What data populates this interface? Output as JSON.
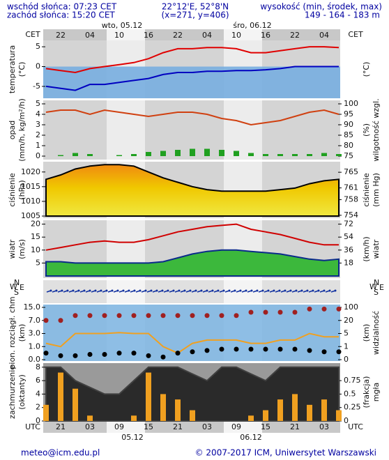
{
  "header": {
    "sunrise": "wschód słońca: 07:23 CET",
    "sunset": "zachód słońca: 15:20 CET",
    "coords": "22°12'E, 52°8'N",
    "grid": "(x=271, y=406)",
    "elev_title": "wysokość (min, środek, max)",
    "elev": "149 - 164 - 183 m"
  },
  "time_axis": {
    "top_zone": "CET",
    "bottom_zone": "UTC",
    "cet": [
      null,
      "22",
      null,
      "04",
      null,
      "10",
      null,
      "16",
      null,
      "22",
      null,
      "04",
      null,
      "10",
      null,
      "16",
      null,
      "22",
      null,
      "04",
      null
    ],
    "utc": [
      null,
      "21",
      null,
      "03",
      null,
      "09",
      null,
      "15",
      null,
      "21",
      null,
      "03",
      null,
      "09",
      null,
      "15",
      null,
      "21",
      null,
      "03",
      null
    ],
    "top_dates": [
      "wto, 05.12",
      "śro, 06.12"
    ],
    "bottom_dates": [
      "05.12",
      "06.12"
    ]
  },
  "compass": {
    "n": "N",
    "w": "W",
    "s": "S",
    "e": "E"
  },
  "footer": {
    "email": "meteo@icm.edu.pl",
    "copyright": "© 2007-2017 ICM, Uniwersytet Warszawski"
  },
  "chart_data": [
    {
      "type": "line",
      "ylabel": [
        "temperatura",
        "(°C)"
      ],
      "y2label": [
        "(°C)"
      ],
      "ylim": [
        -8,
        6.6
      ],
      "yticks": [
        5,
        0,
        -5
      ],
      "series": [
        {
          "type": "line",
          "color": "#e00000",
          "values": [
            -0.5,
            -1,
            -1.5,
            -0.5,
            0,
            0.5,
            1,
            2,
            3.5,
            4.5,
            4.5,
            4.8,
            4.8,
            4.5,
            3.5,
            3.5,
            4,
            4.5,
            5,
            5,
            4.8
          ]
        },
        {
          "type": "line",
          "color": "#0000c0",
          "values": [
            -5,
            -5.5,
            -6,
            -4.5,
            -4.5,
            -4,
            -3.5,
            -3,
            -2,
            -1.5,
            -1.5,
            -1.2,
            -1.2,
            -1,
            -1,
            -0.8,
            -0.5,
            0,
            0,
            0,
            0
          ]
        }
      ]
    },
    {
      "type": "bar",
      "ylabel": [
        "opad",
        "(mm/h, kg/m²/h)"
      ],
      "y2label": [
        "(%)",
        "wilgotność wzgl."
      ],
      "ylim": [
        0,
        5
      ],
      "yticks": [
        5,
        4,
        3,
        2,
        1,
        0
      ],
      "y2lim": [
        75,
        100
      ],
      "y2ticks": [
        100,
        95,
        90,
        85,
        80,
        75
      ],
      "series": [
        {
          "type": "bar",
          "color": "#20a020",
          "values": [
            0,
            0.1,
            0.3,
            0.2,
            0,
            0.1,
            0.2,
            0.4,
            0.5,
            0.6,
            0.7,
            0.7,
            0.6,
            0.5,
            0.3,
            0.2,
            0.2,
            0.2,
            0.2,
            0.3,
            0.2
          ]
        },
        {
          "type": "line",
          "color": "#d04010",
          "axis": "y2",
          "values": [
            96,
            97,
            97,
            95,
            97,
            96,
            95,
            94,
            95,
            96,
            96,
            95,
            93,
            92,
            90,
            91,
            92,
            94,
            96,
            97,
            95
          ]
        }
      ]
    },
    {
      "type": "area",
      "ylabel": [
        "ciśnienie",
        "(hPa)"
      ],
      "y2label": [
        "ciśnienie",
        "(mm Hg)"
      ],
      "ylim": [
        1005,
        1023.5
      ],
      "yticks": [
        1020,
        1015,
        1010,
        1005
      ],
      "y2lim": [
        753.8,
        767.7
      ],
      "y2ticks": [
        765,
        761,
        758,
        754
      ],
      "series": [
        {
          "type": "area",
          "color": "#000000",
          "values": [
            1017.5,
            1019,
            1021,
            1022,
            1022.5,
            1022.5,
            1022,
            1020,
            1018,
            1016.5,
            1015,
            1014,
            1013.5,
            1013.5,
            1013.5,
            1013.5,
            1014,
            1014.5,
            1016,
            1017,
            1017.5
          ]
        }
      ]
    },
    {
      "type": "line",
      "ylabel": [
        "wiatr",
        "(m/s)"
      ],
      "y2label": [
        "(km/h)",
        "wiatr"
      ],
      "ylim": [
        0,
        21.5
      ],
      "yticks": [
        20,
        15,
        10,
        5
      ],
      "y2lim": [
        0,
        77.4
      ],
      "y2ticks": [
        72,
        54,
        36,
        18
      ],
      "series": [
        {
          "type": "line",
          "color": "#d00000",
          "values": [
            10,
            11,
            12,
            13,
            13.5,
            13,
            13,
            14,
            15.5,
            17,
            18,
            19,
            19.5,
            20,
            18,
            17,
            16,
            14.5,
            13,
            12,
            12
          ]
        },
        {
          "type": "area",
          "color": "#0a2a8a",
          "values": [
            5.5,
            5.5,
            5,
            5,
            5,
            5,
            5,
            5,
            5.5,
            7,
            8.5,
            9.5,
            10,
            10,
            9.5,
            9,
            8.5,
            7.5,
            6.5,
            6,
            6.5
          ]
        }
      ]
    },
    {
      "type": "scatter",
      "ylabel": [
        "pion. rozciągł. chm",
        "(km)"
      ],
      "y2label": [
        "(km)",
        "widzialność"
      ],
      "scale": "piecewise",
      "ylim": [
        0,
        15
      ],
      "yticks": [
        {
          "value": 15,
          "label": "15.0"
        },
        {
          "value": 7,
          "label": "7.0"
        },
        {
          "value": 3,
          "label": "3.0"
        },
        {
          "value": 1,
          "label": "1.0"
        },
        {
          "value": 0,
          "label": "0.0"
        }
      ],
      "y2lim": [
        0,
        100
      ],
      "y2ticks": [
        100,
        20,
        5,
        1,
        0
      ],
      "series": [
        {
          "type": "line",
          "color": "#f0a020",
          "axis": "y2",
          "values": [
            2,
            1,
            5,
            5,
            5,
            6,
            5,
            5,
            1,
            0.5,
            2,
            3,
            3,
            3,
            2,
            2,
            3,
            3,
            5,
            4,
            4
          ]
        },
        {
          "type": "scatter",
          "color": "#a02020",
          "values": [
            7,
            7,
            10,
            10,
            10,
            10,
            10,
            10,
            10,
            10,
            10,
            10,
            10,
            10,
            12,
            12,
            12,
            12,
            14,
            14,
            14
          ]
        },
        {
          "type": "scatter",
          "color": "#000000",
          "values": [
            0.5,
            0.3,
            0.3,
            0.4,
            0.4,
            0.5,
            0.5,
            0.3,
            0.2,
            0.5,
            0.6,
            0.7,
            0.8,
            0.8,
            0.8,
            0.8,
            0.8,
            0.8,
            0.7,
            0.6,
            0.6
          ]
        }
      ]
    },
    {
      "type": "bar",
      "ylabel": [
        "zachmurzenie",
        "(oktanty)"
      ],
      "y2label": [
        "(frakcja)",
        "mgła"
      ],
      "ylim": [
        0,
        8.5
      ],
      "yticks": [
        8,
        6,
        4,
        2,
        0
      ],
      "y2lim": [
        0,
        1.0625
      ],
      "y2ticks": [
        0.75,
        0.5,
        0.25,
        0
      ],
      "series": [
        {
          "type": "area",
          "color": "#404040",
          "values": [
            8,
            8,
            6,
            5,
            4,
            4,
            6,
            8,
            8,
            8,
            7,
            6,
            8,
            8,
            7,
            6,
            8,
            8,
            8,
            8,
            8
          ]
        },
        {
          "type": "bar",
          "color": "#f0a020",
          "axis": "y2",
          "values": [
            0.3,
            0.9,
            0.6,
            0.1,
            0,
            0,
            0.1,
            0.9,
            0.5,
            0.4,
            0.2,
            0,
            0,
            0,
            0.1,
            0.2,
            0.4,
            0.5,
            0.3,
            0.4,
            0.2
          ]
        }
      ]
    }
  ]
}
